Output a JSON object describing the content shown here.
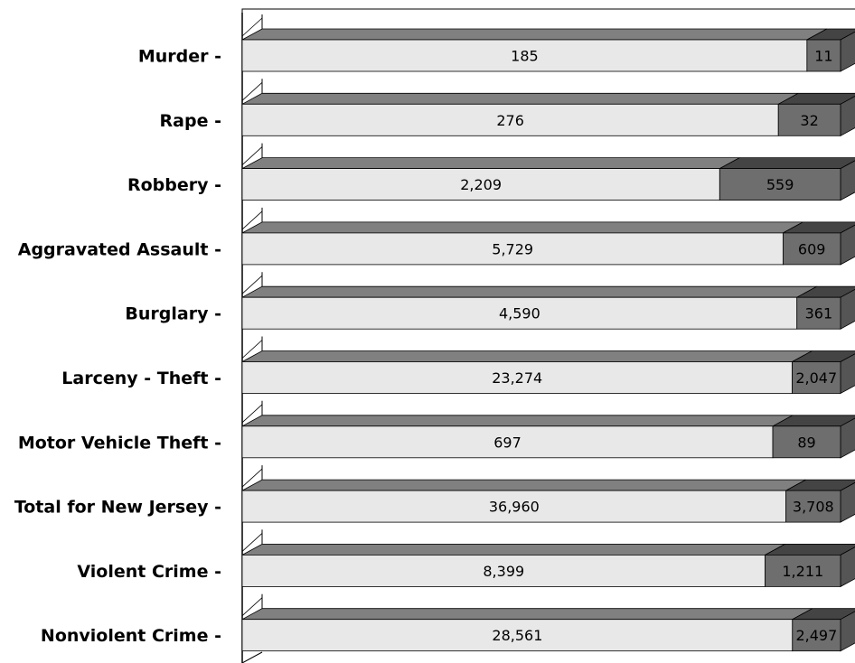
{
  "chart_data": {
    "type": "bar",
    "orientation": "horizontal",
    "stacked": "100%",
    "three_d": true,
    "categories": [
      "Murder -",
      "Rape -",
      "Robbery -",
      "Aggravated Assault -",
      "Burglary -",
      "Larceny - Theft -",
      "Motor Vehicle Theft -",
      "Total for New Jersey -",
      "Violent Crime -",
      "Nonviolent Crime -"
    ],
    "series": [
      {
        "values": [
          185,
          276,
          2209,
          5729,
          4590,
          23274,
          697,
          36960,
          8399,
          28561
        ],
        "labels": [
          "185",
          "276",
          "2,209",
          "5,729",
          "4,590",
          "23,274",
          "697",
          "36,960",
          "8,399",
          "28,561"
        ],
        "color": "#e8e8e8",
        "top_color": "#808080"
      },
      {
        "values": [
          11,
          32,
          559,
          609,
          361,
          2047,
          89,
          3708,
          1211,
          2497
        ],
        "labels": [
          "11",
          "32",
          "559",
          "609",
          "361",
          "2,047",
          "89",
          "3,708",
          "1,211",
          "2,497"
        ],
        "color": "#6e6e6e",
        "top_color": "#444444"
      }
    ],
    "grid": false,
    "legend": "none"
  }
}
